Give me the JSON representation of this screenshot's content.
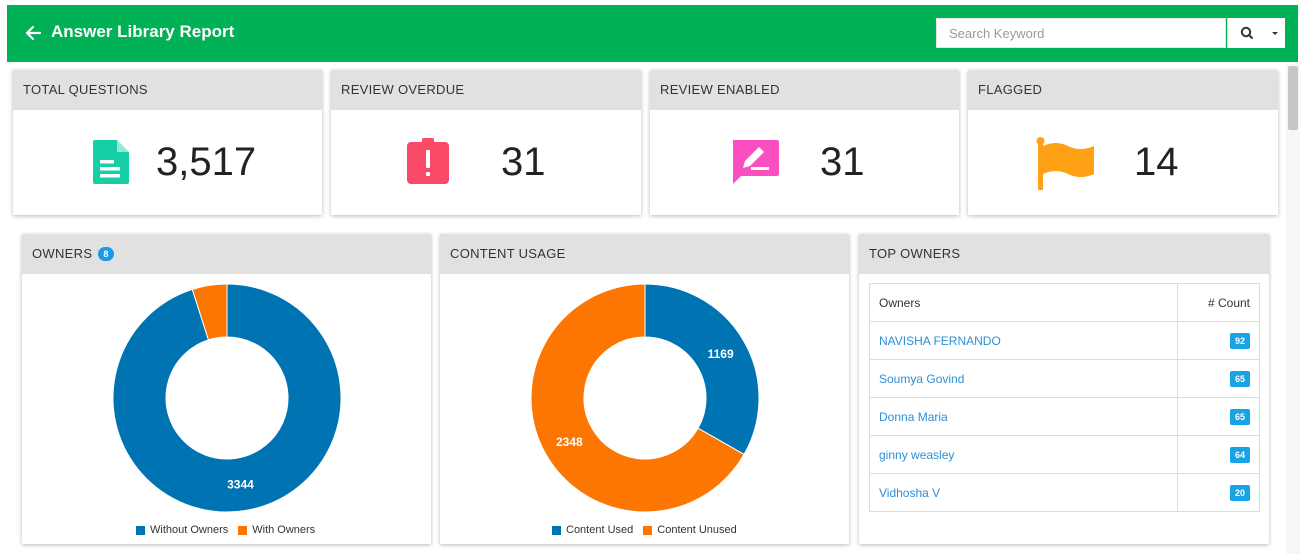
{
  "header": {
    "title": "Answer Library Report",
    "search_placeholder": "Search Keyword",
    "bg_color": "#00b156"
  },
  "stats": [
    {
      "label": "TOTAL QUESTIONS",
      "value": "3,517",
      "icon": "document-icon",
      "color": "#16cfa6"
    },
    {
      "label": "REVIEW OVERDUE",
      "value": "31",
      "icon": "alert-clipboard-icon",
      "color": "#fb4a68"
    },
    {
      "label": "REVIEW ENABLED",
      "value": "31",
      "icon": "edit-comment-icon",
      "color": "#fb4ec0"
    },
    {
      "label": "FLAGGED",
      "value": "14",
      "icon": "flag-icon",
      "color": "#fea115"
    }
  ],
  "owners_panel": {
    "title": "OWNERS",
    "badge": "8",
    "chart_data": {
      "type": "pie",
      "title": "",
      "categories": [
        "Without Owners",
        "With Owners"
      ],
      "values": [
        3344,
        173
      ],
      "data_labels": [
        "3344",
        ""
      ],
      "colors": [
        "#0073b3",
        "#fd7601"
      ],
      "legend_position": "bottom"
    }
  },
  "content_panel": {
    "title": "CONTENT USAGE",
    "chart_data": {
      "type": "pie",
      "title": "",
      "categories": [
        "Content Used",
        "Content Unused"
      ],
      "values": [
        1169,
        2348
      ],
      "data_labels": [
        "1169",
        "2348"
      ],
      "colors": [
        "#0073b3",
        "#fd7601"
      ],
      "legend_position": "bottom"
    }
  },
  "top_owners": {
    "title": "TOP OWNERS",
    "columns": [
      "Owners",
      "# Count"
    ],
    "rows": [
      {
        "name": "NAVISHA FERNANDO",
        "count": "92"
      },
      {
        "name": "Soumya Govind",
        "count": "65"
      },
      {
        "name": "Donna Maria",
        "count": "65"
      },
      {
        "name": "ginny weasley",
        "count": "64"
      },
      {
        "name": "Vidhosha V",
        "count": "20"
      }
    ]
  }
}
